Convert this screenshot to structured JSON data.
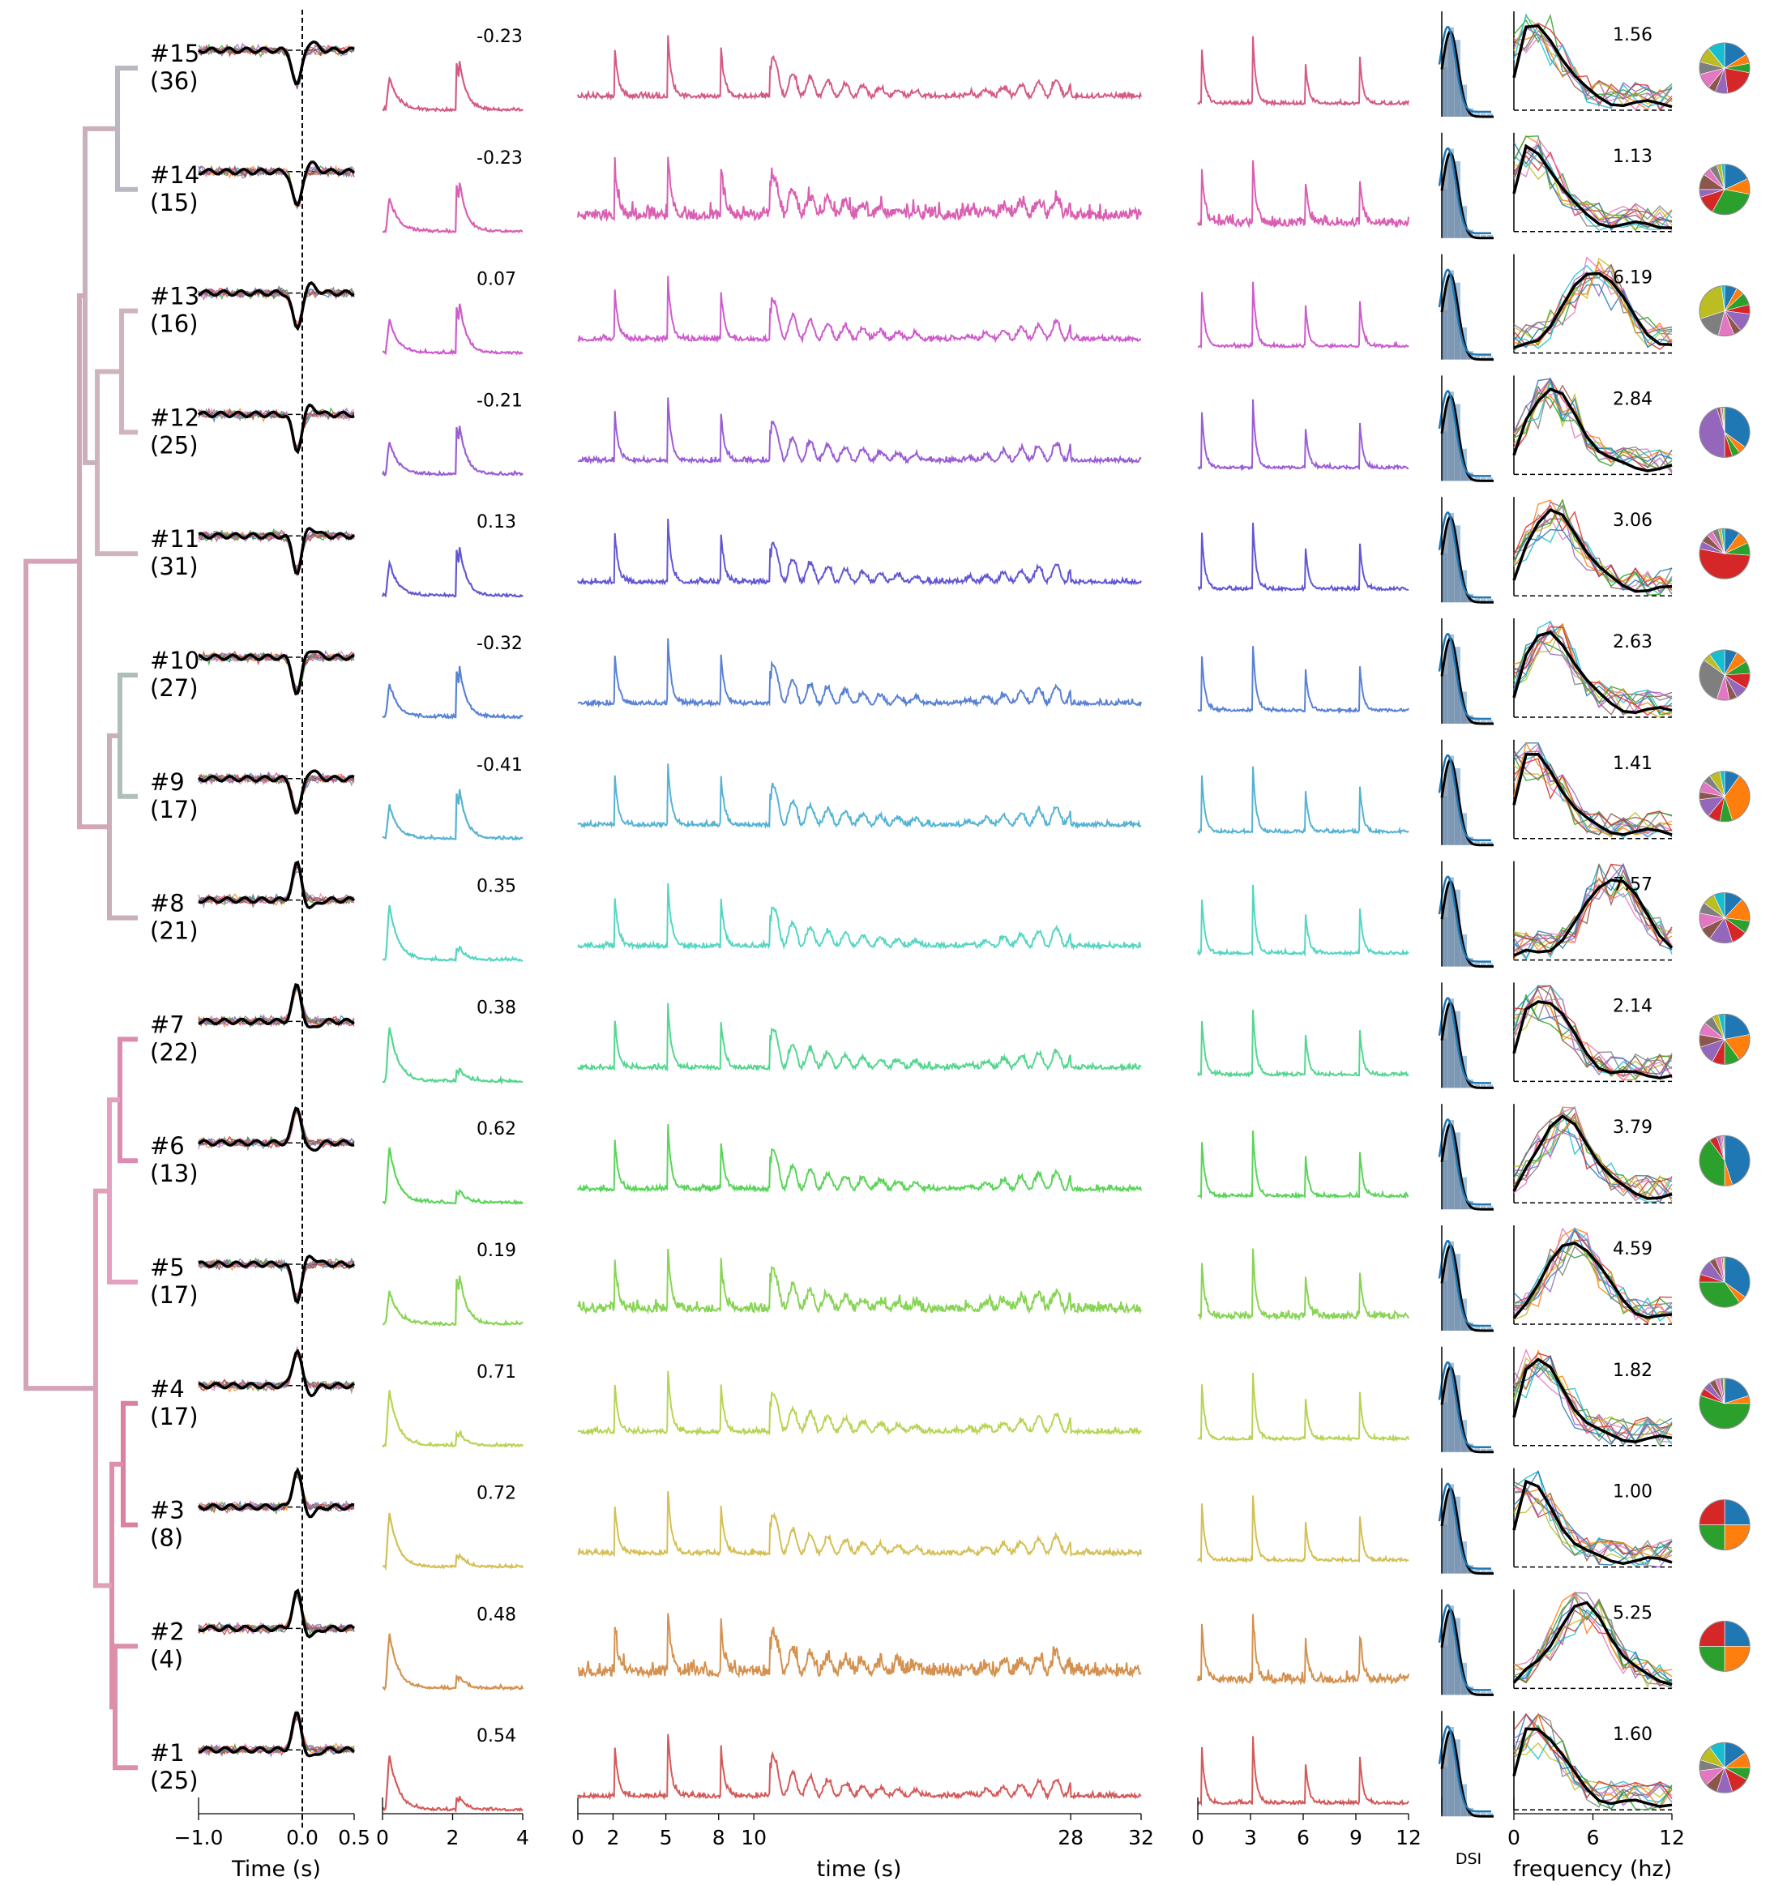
{
  "chart_data": {
    "type": "line",
    "cluster_labels": [
      "#15",
      "#14",
      "#13",
      "#12",
      "#11",
      "#10",
      "#9",
      "#8",
      "#7",
      "#6",
      "#5",
      "#4",
      "#3",
      "#2",
      "#1"
    ],
    "cluster_counts": [
      "(36)",
      "(15)",
      "(16)",
      "(25)",
      "(31)",
      "(27)",
      "(17)",
      "(21)",
      "(22)",
      "(13)",
      "(17)",
      "(17)",
      "(8)",
      "(4)",
      "(25)"
    ],
    "colors": [
      "#d45a82",
      "#d95fb2",
      "#cd5ccc",
      "#9b5dd4",
      "#6257d3",
      "#5a82d4",
      "#55b3d4",
      "#55d6c2",
      "#55d690",
      "#5ad45a",
      "#88d455",
      "#b8d455",
      "#d4c055",
      "#d4914f",
      "#d45a5a"
    ],
    "response_index": [
      "-0.23",
      "-0.23",
      "0.07",
      "-0.21",
      "0.13",
      "-0.32",
      "-0.41",
      "0.35",
      "0.38",
      "0.62",
      "0.19",
      "0.71",
      "0.72",
      "0.48",
      "0.54"
    ],
    "peak_frequency": [
      "1.56",
      "1.13",
      "6.19",
      "2.84",
      "3.06",
      "2.63",
      "1.41",
      "7.57",
      "2.14",
      "3.79",
      "4.59",
      "1.82",
      "1.00",
      "5.25",
      "1.60"
    ],
    "panels": {
      "kernel": {
        "xlabel": "Time (s)",
        "xlim": [
          -1.0,
          0.5
        ],
        "ticks": [
          "−1.0",
          "0.0",
          "0.5"
        ]
      },
      "response": {
        "xlim": [
          0,
          4
        ],
        "ticks": [
          "0",
          "2",
          "4"
        ]
      },
      "full_trace": {
        "xlabel": "time (s)",
        "xlim": [
          0,
          32
        ],
        "ticks": [
          "0",
          "2",
          "5",
          "8",
          "10",
          "28",
          "32"
        ]
      },
      "repeat": {
        "xlim": [
          0,
          12
        ],
        "ticks": [
          "0",
          "3",
          "6",
          "9",
          "12"
        ]
      },
      "dsi": {
        "xlabel": "DSI"
      },
      "spectrum": {
        "xlabel": "frequency (hz)",
        "xlim": [
          0,
          12
        ],
        "ticks": [
          "0",
          "6",
          "12"
        ]
      }
    },
    "pie_colors": [
      "#1f77b4",
      "#ff7f0e",
      "#2ca02c",
      "#d62728",
      "#9467bd",
      "#8c564b",
      "#e377c2",
      "#7f7f7f",
      "#bcbd22",
      "#17becf"
    ],
    "pie_fractions": [
      [
        0.16,
        0.06,
        0.06,
        0.2,
        0.08,
        0.05,
        0.1,
        0.08,
        0.1,
        0.11
      ],
      [
        0.18,
        0.1,
        0.3,
        0.12,
        0.05,
        0.1,
        0.05,
        0.05,
        0.03,
        0.02
      ],
      [
        0.08,
        0.05,
        0.08,
        0.06,
        0.12,
        0.05,
        0.1,
        0.16,
        0.28,
        0.02
      ],
      [
        0.35,
        0.05,
        0.05,
        0.05,
        0.45,
        0.02,
        0.01,
        0.01,
        0.01,
        0.0
      ],
      [
        0.1,
        0.08,
        0.08,
        0.52,
        0.05,
        0.05,
        0.04,
        0.04,
        0.02,
        0.02
      ],
      [
        0.08,
        0.08,
        0.08,
        0.1,
        0.08,
        0.05,
        0.08,
        0.3,
        0.05,
        0.1
      ],
      [
        0.1,
        0.35,
        0.08,
        0.08,
        0.12,
        0.05,
        0.07,
        0.05,
        0.07,
        0.03
      ],
      [
        0.12,
        0.15,
        0.08,
        0.1,
        0.15,
        0.08,
        0.1,
        0.07,
        0.08,
        0.07
      ],
      [
        0.22,
        0.18,
        0.1,
        0.08,
        0.12,
        0.08,
        0.08,
        0.06,
        0.04,
        0.04
      ],
      [
        0.45,
        0.05,
        0.4,
        0.05,
        0.02,
        0.01,
        0.01,
        0.01,
        0.0,
        0.0
      ],
      [
        0.35,
        0.05,
        0.35,
        0.05,
        0.1,
        0.04,
        0.04,
        0.01,
        0.01,
        0.0
      ],
      [
        0.2,
        0.05,
        0.55,
        0.05,
        0.05,
        0.04,
        0.03,
        0.02,
        0.01,
        0.0
      ],
      [
        0.25,
        0.25,
        0.25,
        0.25,
        0,
        0,
        0,
        0,
        0,
        0
      ],
      [
        0.25,
        0.25,
        0.25,
        0.25,
        0,
        0,
        0,
        0,
        0,
        0
      ],
      [
        0.15,
        0.1,
        0.08,
        0.12,
        0.1,
        0.08,
        0.1,
        0.07,
        0.1,
        0.1
      ]
    ]
  }
}
